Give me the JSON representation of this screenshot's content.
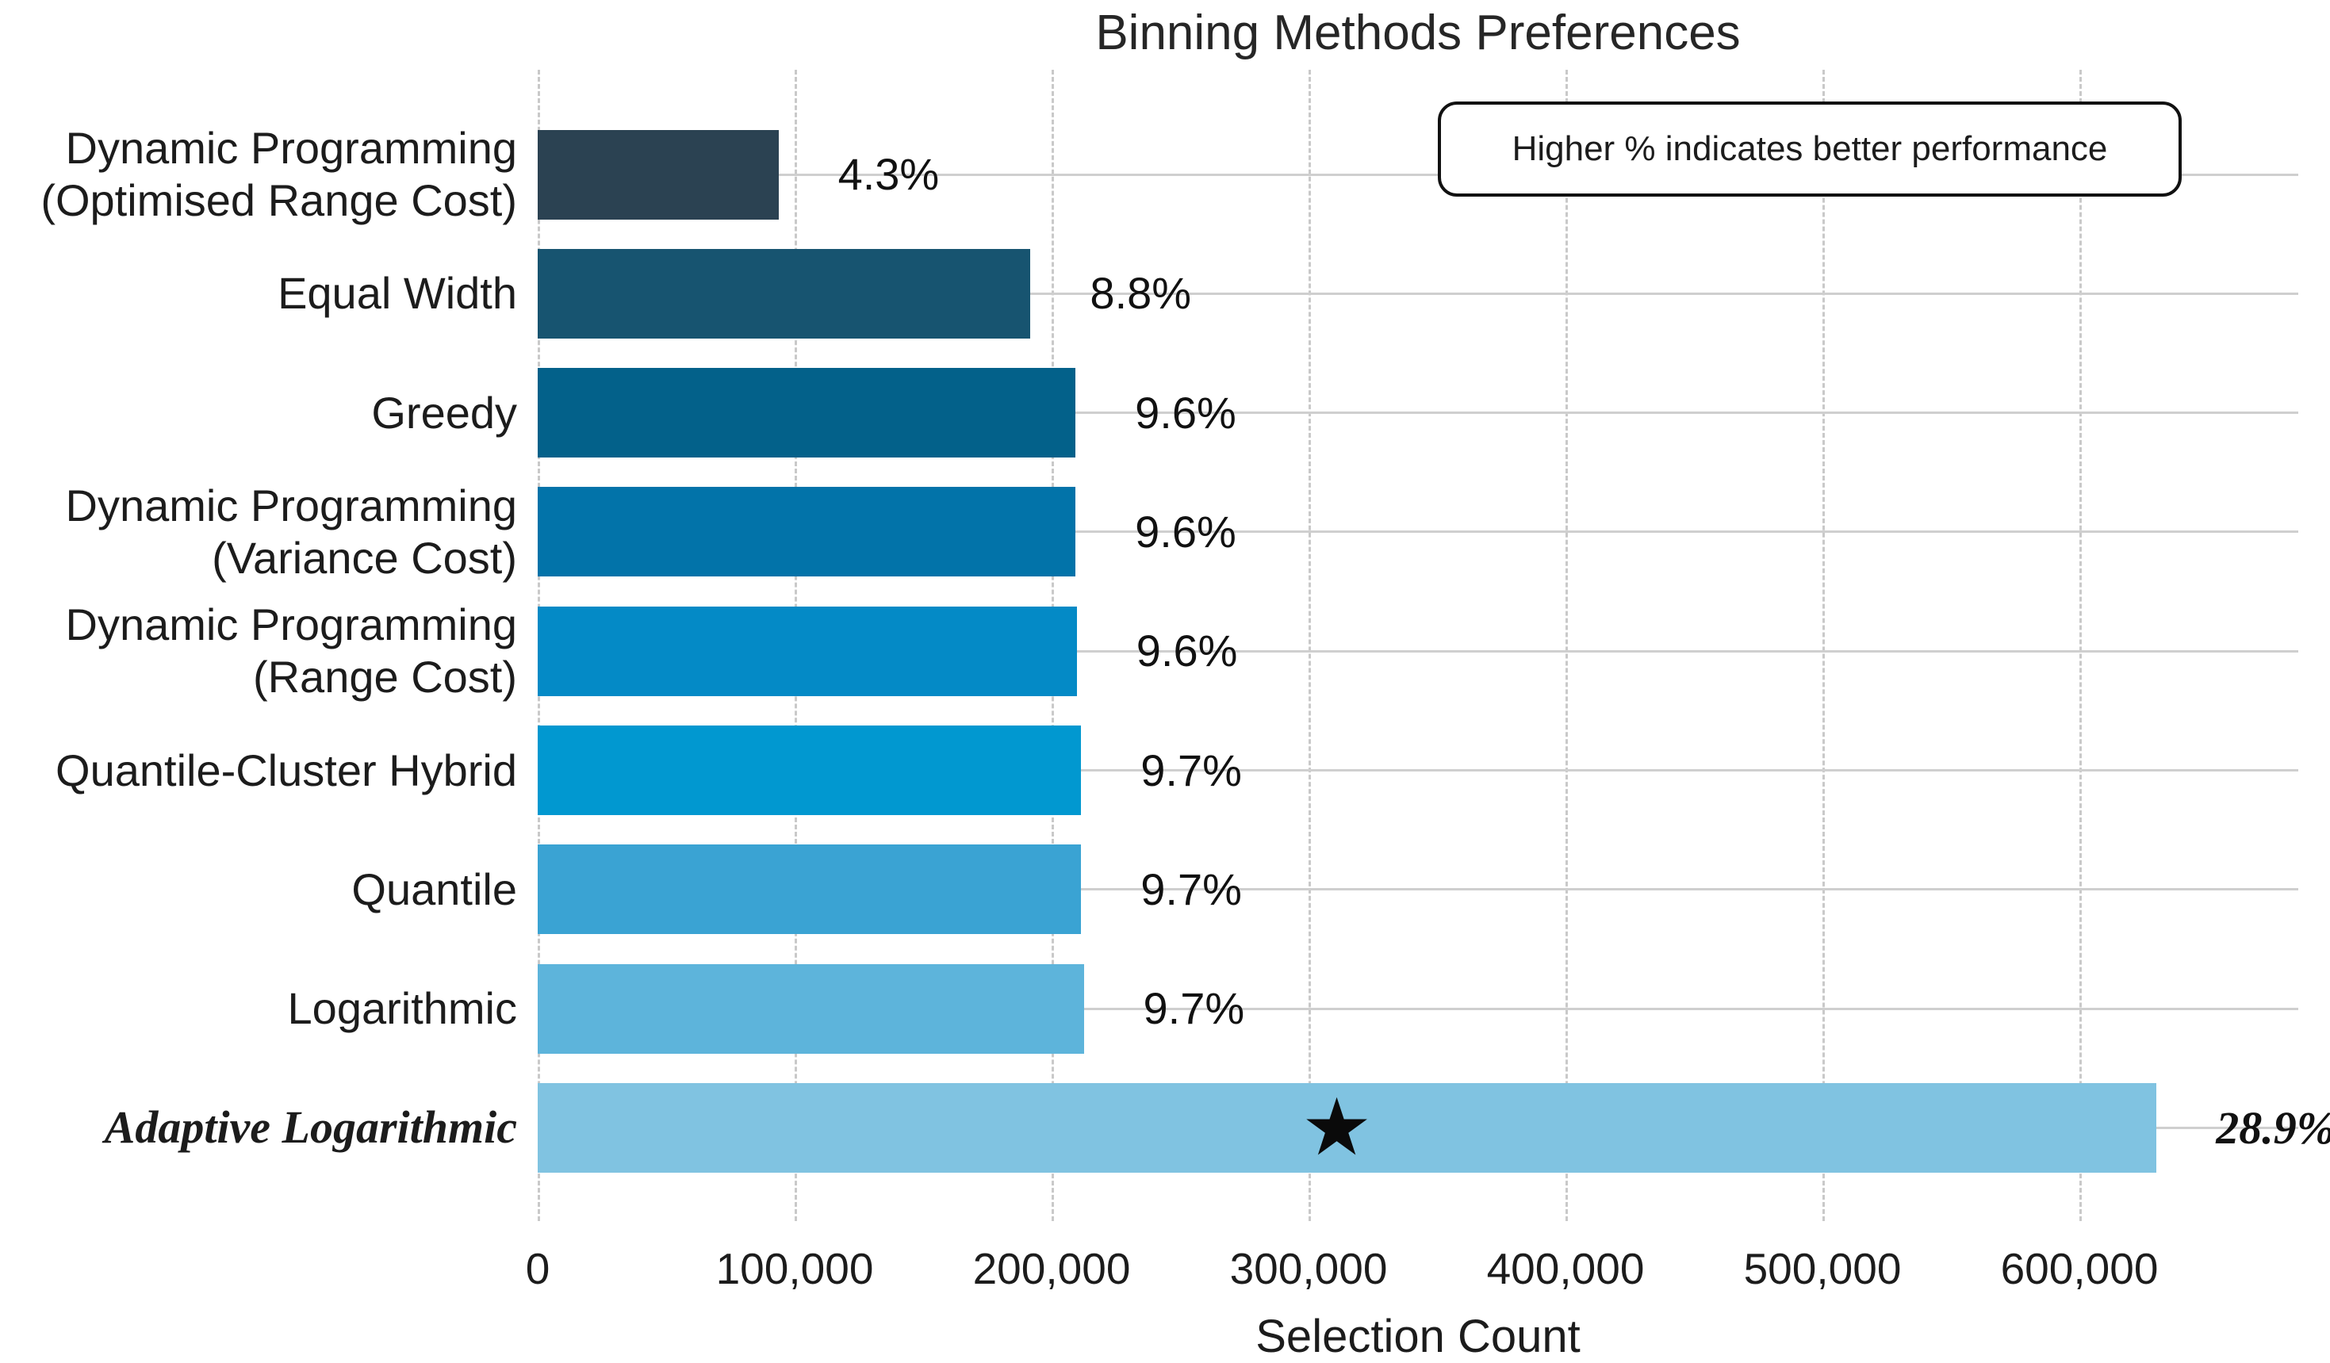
{
  "chart_data": {
    "type": "bar",
    "orientation": "horizontal",
    "title": "Binning Methods Preferences",
    "xlabel": "Selection Count",
    "annotation": "Higher % indicates better performance",
    "xlim": [
      0,
      685000
    ],
    "x_ticks": [
      {
        "label": "0",
        "value": 0
      },
      {
        "label": "100,000",
        "value": 100000
      },
      {
        "label": "200,000",
        "value": 200000
      },
      {
        "label": "300,000",
        "value": 300000
      },
      {
        "label": "400,000",
        "value": 400000
      },
      {
        "label": "500,000",
        "value": 500000
      },
      {
        "label": "600,000",
        "value": 600000
      }
    ],
    "grid": {
      "vertical_style": "dashed",
      "horizontal_style": "solid"
    },
    "bars": [
      {
        "category": "Dynamic Programming (Optimised Range Cost)",
        "lines": [
          "Dynamic Programming",
          "(Optimised Range Cost)"
        ],
        "value": 93700,
        "pct": 4.3,
        "pct_label": "4.3%",
        "color": "#2b4252",
        "emphasized": false
      },
      {
        "category": "Equal Width",
        "lines": [
          "Equal Width"
        ],
        "value": 191800,
        "pct": 8.8,
        "pct_label": "8.8%",
        "color": "#175470",
        "emphasized": false
      },
      {
        "category": "Greedy",
        "lines": [
          "Greedy"
        ],
        "value": 209300,
        "pct": 9.6,
        "pct_label": "9.6%",
        "color": "#03618a",
        "emphasized": false
      },
      {
        "category": "Dynamic Programming (Variance Cost)",
        "lines": [
          "Dynamic Programming",
          "(Variance Cost)"
        ],
        "value": 209300,
        "pct": 9.6,
        "pct_label": "9.6%",
        "color": "#0273a9",
        "emphasized": false
      },
      {
        "category": "Dynamic Programming (Range Cost)",
        "lines": [
          "Dynamic Programming",
          "(Range Cost)"
        ],
        "value": 209800,
        "pct": 9.6,
        "pct_label": "9.6%",
        "color": "#048ac6",
        "emphasized": false
      },
      {
        "category": "Quantile-Cluster Hybrid",
        "lines": [
          "Quantile-Cluster Hybrid"
        ],
        "value": 211500,
        "pct": 9.7,
        "pct_label": "9.7%",
        "color": "#0198d0",
        "emphasized": false
      },
      {
        "category": "Quantile",
        "lines": [
          "Quantile"
        ],
        "value": 211500,
        "pct": 9.7,
        "pct_label": "9.7%",
        "color": "#3aa3d3",
        "emphasized": false
      },
      {
        "category": "Logarithmic",
        "lines": [
          "Logarithmic"
        ],
        "value": 212500,
        "pct": 9.7,
        "pct_label": "9.7%",
        "color": "#5db4db",
        "emphasized": false
      },
      {
        "category": "Adaptive Logarithmic",
        "lines": [
          "Adaptive Logarithmic"
        ],
        "value": 630000,
        "pct": 28.9,
        "pct_label": "28.9%",
        "color": "#80c3e1",
        "emphasized": true,
        "marker": {
          "symbol": "star",
          "x": 311000
        }
      }
    ]
  },
  "icons": {
    "star": "★"
  }
}
